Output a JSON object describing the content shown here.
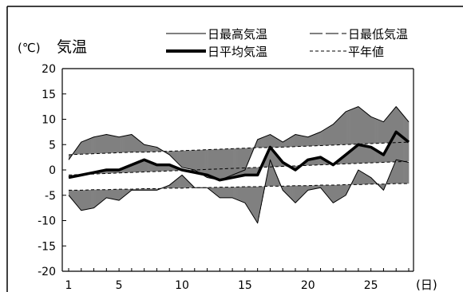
{
  "chart_data": {
    "type": "line",
    "unit_label": "(℃)",
    "title": "気温",
    "xlabel": "(日)",
    "ylim": [
      -20,
      20
    ],
    "y_ticks": [
      20,
      15,
      10,
      5,
      0,
      -5,
      -10,
      -15,
      -20
    ],
    "x_ticks": [
      1,
      5,
      10,
      15,
      20,
      25
    ],
    "xlim": [
      1,
      28
    ],
    "legend": [
      "日最高気温",
      "日最低気温",
      "日平均気温",
      "平年値"
    ],
    "days": [
      1,
      2,
      3,
      4,
      5,
      6,
      7,
      8,
      9,
      10,
      11,
      12,
      13,
      14,
      15,
      16,
      17,
      18,
      19,
      20,
      21,
      22,
      23,
      24,
      25,
      26,
      27,
      28
    ],
    "series": [
      {
        "name": "日最高気温",
        "style": "thin",
        "values": [
          2,
          5.5,
          6.5,
          7,
          6.5,
          7,
          5,
          4.5,
          3,
          0.5,
          0,
          -1.5,
          -2,
          -1,
          0,
          6,
          7,
          5.5,
          7,
          6.5,
          7.5,
          9,
          11.5,
          12.5,
          10.5,
          9.5,
          12.5,
          9.5
        ]
      },
      {
        "name": "日最低気温",
        "style": "thin",
        "values": [
          -5,
          -8,
          -7.5,
          -5.5,
          -6,
          -4,
          -4,
          -4,
          -3,
          -1,
          -3.5,
          -3.5,
          -5.5,
          -5.5,
          -6.5,
          -10.5,
          2,
          -4,
          -6.5,
          -4,
          -3.5,
          -6.5,
          -5,
          0,
          -1.5,
          -4,
          2,
          1.5
        ]
      },
      {
        "name": "日平均気温",
        "style": "thick",
        "values": [
          -1.5,
          -1,
          -0.5,
          0,
          0,
          1,
          2,
          1,
          1,
          0,
          -0.5,
          -1,
          -2,
          -1.5,
          -1,
          -1,
          4.5,
          1.5,
          0,
          2,
          2.5,
          1,
          3,
          5,
          4.5,
          3,
          7.5,
          5.5
        ]
      },
      {
        "name": "平年値 最高",
        "style": "dashed",
        "values": [
          3,
          3.1,
          3.2,
          3.3,
          3.4,
          3.5,
          3.5,
          3.6,
          3.7,
          3.8,
          3.9,
          4,
          4.1,
          4.2,
          4.3,
          4.4,
          4.4,
          4.5,
          4.6,
          4.7,
          4.8,
          4.9,
          5,
          5.1,
          5.2,
          5.3,
          5.4,
          5.5
        ]
      },
      {
        "name": "平年値 平均",
        "style": "dashed",
        "values": [
          -1,
          -0.9,
          -0.8,
          -0.7,
          -0.6,
          -0.5,
          -0.4,
          -0.3,
          -0.2,
          -0.1,
          0,
          0.1,
          0.2,
          0.3,
          0.4,
          0.5,
          0.6,
          0.7,
          0.8,
          0.9,
          1,
          1.1,
          1.2,
          1.3,
          1.4,
          1.5,
          1.6,
          1.7
        ]
      },
      {
        "name": "平年値 最低",
        "style": "dashed",
        "values": [
          -4,
          -4,
          -3.9,
          -3.9,
          -3.8,
          -3.8,
          -3.7,
          -3.7,
          -3.6,
          -3.6,
          -3.5,
          -3.5,
          -3.4,
          -3.4,
          -3.3,
          -3.3,
          -3.2,
          -3.2,
          -3.1,
          -3.1,
          -3,
          -3,
          -2.9,
          -2.9,
          -2.8,
          -2.8,
          -2.7,
          -2.7
        ]
      }
    ],
    "grid": false,
    "legend_position": "top",
    "colors": {
      "line": "#000000",
      "fill": "#808080",
      "background": "#ffffff"
    }
  }
}
